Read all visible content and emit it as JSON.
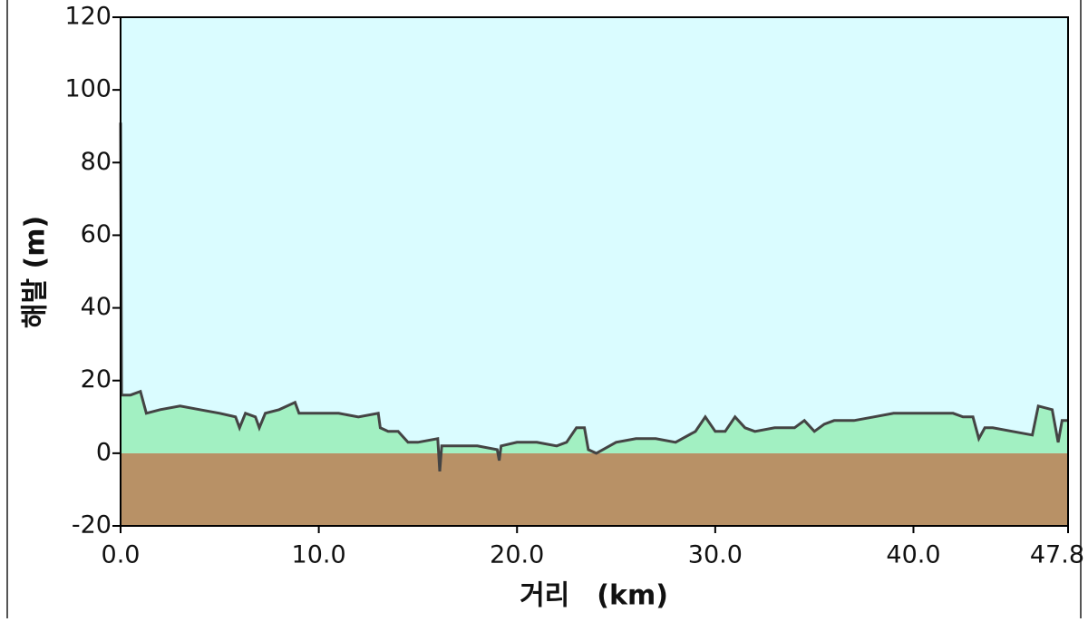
{
  "chart_data": {
    "type": "area",
    "xlabel": "거리　(km)",
    "ylabel": "해발 (m)",
    "xlim": [
      0,
      47.8
    ],
    "ylim": [
      -20,
      120
    ],
    "xticks": [
      {
        "value": 0,
        "label": "0.0"
      },
      {
        "value": 10,
        "label": "10.0"
      },
      {
        "value": 20,
        "label": "20.0"
      },
      {
        "value": 30,
        "label": "30.0"
      },
      {
        "value": 40,
        "label": "40.0"
      },
      {
        "value": 47.8,
        "label": "47.8"
      }
    ],
    "yticks": [
      -20,
      0,
      20,
      40,
      60,
      80,
      100,
      120
    ],
    "sky_color": "#dafcff",
    "ground_color": "#b89166",
    "series": [
      {
        "color": "#444444",
        "fill": "#a2f0c2",
        "x": [
          0,
          0.05,
          0.5,
          1.0,
          1.3,
          2,
          3,
          4,
          5,
          5.8,
          6,
          6.3,
          6.8,
          7,
          7.3,
          8,
          8.8,
          9,
          10,
          11,
          12,
          13,
          13.1,
          13.5,
          14,
          14.5,
          15,
          16,
          16.1,
          16.2,
          17,
          18,
          19,
          19.1,
          19.2,
          20,
          21,
          22,
          22.5,
          23,
          23.4,
          23.6,
          24,
          25,
          26,
          27,
          28,
          29,
          29.5,
          30,
          30.5,
          31,
          31.5,
          32,
          33,
          34,
          34.5,
          35,
          35.5,
          36,
          37,
          38,
          39,
          40,
          41,
          42,
          42.5,
          43,
          43.3,
          43.6,
          44,
          45,
          46,
          46.3,
          47,
          47.3,
          47.5,
          47.8
        ],
        "values": [
          91,
          16,
          16,
          17,
          11,
          12,
          13,
          12,
          11,
          10,
          7,
          11,
          10,
          7,
          11,
          12,
          14,
          11,
          11,
          11,
          10,
          11,
          7,
          6,
          6,
          3,
          3,
          4,
          -5,
          2,
          2,
          2,
          1,
          -2,
          2,
          3,
          3,
          2,
          3,
          7,
          7,
          1,
          0,
          3,
          4,
          4,
          3,
          6,
          10,
          6,
          6,
          10,
          7,
          6,
          7,
          7,
          9,
          6,
          8,
          9,
          9,
          10,
          11,
          11,
          11,
          11,
          10,
          10,
          4,
          7,
          7,
          6,
          5,
          13,
          12,
          3,
          9,
          9
        ]
      }
    ]
  }
}
